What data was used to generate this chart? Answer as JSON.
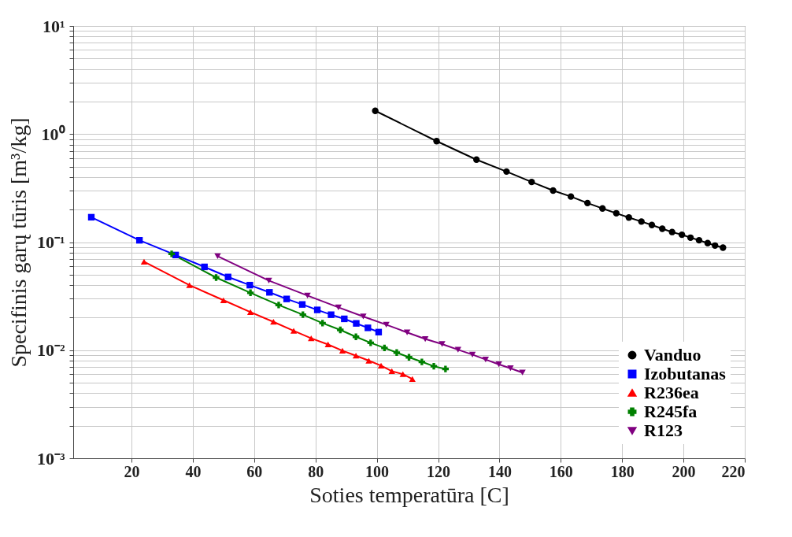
{
  "chart_data": {
    "type": "line",
    "xlabel": "Soties temperatūra [C]",
    "ylabel": "Specifinis garų tūris [m³/kg]",
    "log": "y",
    "grid": true,
    "legend": "bottom right",
    "xlim": [
      1,
      220
    ],
    "xticks": [
      20,
      40,
      60,
      80,
      100,
      120,
      140,
      160,
      180,
      200,
      220
    ],
    "ylim": [
      0.001,
      10
    ],
    "yticks": [
      {
        "value": 0.001,
        "label": "10⁻³"
      },
      {
        "value": 0.002,
        "label": null
      },
      {
        "value": 0.003,
        "label": null
      },
      {
        "value": 0.004,
        "label": null
      },
      {
        "value": 0.005,
        "label": null
      },
      {
        "value": 0.006,
        "label": null
      },
      {
        "value": 0.007,
        "label": null
      },
      {
        "value": 0.008,
        "label": null
      },
      {
        "value": 0.009,
        "label": null
      },
      {
        "value": 0.01,
        "label": "10⁻²"
      },
      {
        "value": 0.02,
        "label": null
      },
      {
        "value": 0.03,
        "label": null
      },
      {
        "value": 0.04,
        "label": null
      },
      {
        "value": 0.05,
        "label": null
      },
      {
        "value": 0.06,
        "label": null
      },
      {
        "value": 0.07,
        "label": null
      },
      {
        "value": 0.08,
        "label": null
      },
      {
        "value": 0.09,
        "label": null
      },
      {
        "value": 0.1,
        "label": "10⁻¹"
      },
      {
        "value": 0.2,
        "label": null
      },
      {
        "value": 0.3,
        "label": null
      },
      {
        "value": 0.4,
        "label": null
      },
      {
        "value": 0.5,
        "label": null
      },
      {
        "value": 0.6,
        "label": null
      },
      {
        "value": 0.7,
        "label": null
      },
      {
        "value": 0.8,
        "label": null
      },
      {
        "value": 0.9,
        "label": null
      },
      {
        "value": 1,
        "label": "10⁰"
      },
      {
        "value": 2,
        "label": null
      },
      {
        "value": 3,
        "label": null
      },
      {
        "value": 4,
        "label": null
      },
      {
        "value": 5,
        "label": null
      },
      {
        "value": 6,
        "label": null
      },
      {
        "value": 7,
        "label": null
      },
      {
        "value": 8,
        "label": null
      },
      {
        "value": 9,
        "label": null
      },
      {
        "value": 10,
        "label": "10¹"
      }
    ],
    "series": [
      {
        "name": "Vanduo",
        "color": "#000000",
        "marker": "circle",
        "x": [
          99.5,
          119.5,
          132.5,
          142.3,
          150.5,
          157.5,
          163.3,
          168.7,
          173.6,
          178.1,
          182.2,
          186.3,
          189.7,
          193.1,
          196.3,
          199.5,
          202.3,
          205.1,
          207.9,
          210.3,
          212.9
        ],
        "values": [
          1.64,
          0.86,
          0.58,
          0.45,
          0.36,
          0.3,
          0.264,
          0.23,
          0.205,
          0.185,
          0.169,
          0.155,
          0.144,
          0.133,
          0.124,
          0.117,
          0.11,
          0.104,
          0.098,
          0.093,
          0.089
        ]
      },
      {
        "name": "Izobutanas",
        "color": "#0000ff",
        "marker": "square",
        "x": [
          6.9,
          22.6,
          34.4,
          43.8,
          51.5,
          58.6,
          65.0,
          70.6,
          75.7,
          80.6,
          85.1,
          89.4,
          93.3,
          97.1,
          100.6
        ],
        "values": [
          0.17,
          0.104,
          0.076,
          0.059,
          0.0476,
          0.04,
          0.0343,
          0.0298,
          0.0265,
          0.0236,
          0.0213,
          0.0195,
          0.0177,
          0.0161,
          0.0147
        ]
      },
      {
        "name": "R236ea",
        "color": "#ff0000",
        "marker": "triangle",
        "x": [
          24.1,
          38.9,
          50.0,
          58.8,
          66.3,
          72.9,
          78.6,
          84.1,
          88.8,
          93.2,
          97.4,
          101.4,
          104.9,
          108.5,
          111.6
        ],
        "values": [
          0.066,
          0.04,
          0.029,
          0.0225,
          0.0183,
          0.0151,
          0.0129,
          0.0113,
          0.0099,
          0.0089,
          0.008,
          0.0072,
          0.0064,
          0.006,
          0.0054
        ]
      },
      {
        "name": "R245fa",
        "color": "#008000",
        "marker": "cross",
        "x": [
          33.1,
          47.6,
          58.8,
          68.0,
          75.9,
          82.3,
          88.1,
          93.2,
          98.0,
          102.5,
          106.5,
          110.5,
          114.7,
          118.6,
          122.4
        ],
        "values": [
          0.078,
          0.047,
          0.034,
          0.0262,
          0.0213,
          0.0178,
          0.0154,
          0.0133,
          0.0117,
          0.0105,
          0.0095,
          0.0086,
          0.0078,
          0.0071,
          0.0067
        ]
      },
      {
        "name": "R123",
        "color": "#800080",
        "marker": "triangle-down",
        "x": [
          48.1,
          64.8,
          77.4,
          87.5,
          95.6,
          103.1,
          109.9,
          115.8,
          121.3,
          126.5,
          131.2,
          135.5,
          139.8,
          143.6,
          147.5
        ],
        "values": [
          0.074,
          0.044,
          0.032,
          0.0249,
          0.0205,
          0.0172,
          0.0146,
          0.0127,
          0.0114,
          0.0101,
          0.0091,
          0.0082,
          0.0074,
          0.0068,
          0.0062
        ]
      }
    ]
  }
}
